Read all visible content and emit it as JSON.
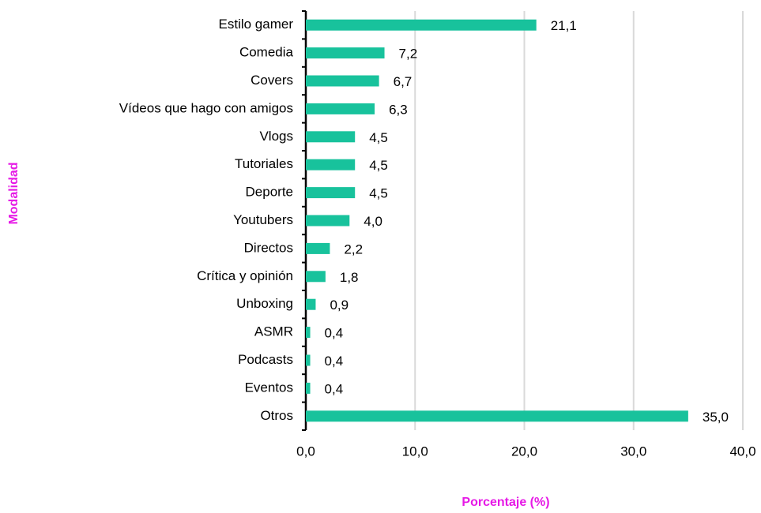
{
  "chart_data": {
    "type": "bar",
    "orientation": "horizontal",
    "x_label": "Porcentaje (%)",
    "y_label": "Modalidad",
    "categories": [
      "Estilo gamer",
      "Comedia",
      "Covers",
      "Vídeos que hago con amigos",
      "Vlogs",
      "Tutoriales",
      "Deporte",
      "Youtubers",
      "Directos",
      "Crítica y opinión",
      "Unboxing",
      "ASMR",
      "Podcasts",
      "Eventos",
      "Otros"
    ],
    "values": [
      21.1,
      7.2,
      6.7,
      6.3,
      4.5,
      4.5,
      4.5,
      4.0,
      2.2,
      1.8,
      0.9,
      0.4,
      0.4,
      0.4,
      35.0
    ],
    "value_labels": [
      "21,1",
      "7,2",
      "6,7",
      "6,3",
      "4,5",
      "4,5",
      "4,5",
      "4,0",
      "2,2",
      "1,8",
      "0,9",
      "0,4",
      "0,4",
      "0,4",
      "35,0"
    ],
    "color": "#18c29c",
    "xlim": [
      0,
      40
    ],
    "xticks": [
      {
        "value": 0,
        "label": "0,0"
      },
      {
        "value": 10,
        "label": "10,0"
      },
      {
        "value": 20,
        "label": "20,0"
      },
      {
        "value": 30,
        "label": "30,0"
      },
      {
        "value": 40,
        "label": "40,0"
      }
    ],
    "grid": true
  }
}
